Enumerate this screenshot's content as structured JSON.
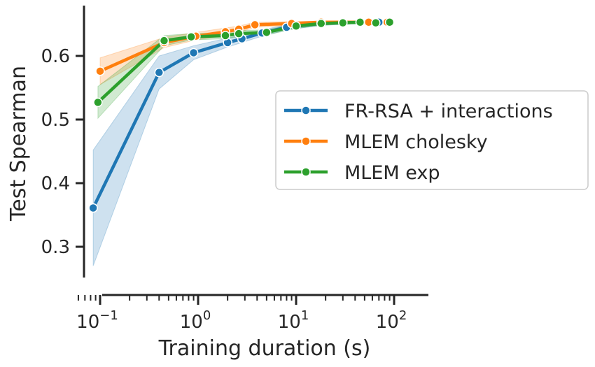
{
  "chart_data": {
    "type": "line",
    "title": "",
    "xlabel": "Training duration (s)",
    "ylabel": "Test Spearman",
    "xscale": "log",
    "xlim": [
      0.06,
      130
    ],
    "ylim": [
      0.25,
      0.68
    ],
    "grid": false,
    "legend_position": "center-right",
    "x_ticks": [
      {
        "value": 0.1,
        "base": "10",
        "exp": "−1"
      },
      {
        "value": 1,
        "base": "10",
        "exp": "0"
      },
      {
        "value": 10,
        "base": "10",
        "exp": "1"
      },
      {
        "value": 100,
        "base": "10",
        "exp": "2"
      }
    ],
    "y_ticks": [
      {
        "value": 0.3,
        "label": "0.3"
      },
      {
        "value": 0.4,
        "label": "0.4"
      },
      {
        "value": 0.5,
        "label": "0.5"
      },
      {
        "value": 0.6,
        "label": "0.6"
      }
    ],
    "series": [
      {
        "name": "FR-RSA + interactions",
        "color": "#1f77b4",
        "x": [
          0.085,
          0.4,
          0.9,
          2.0,
          2.8,
          4.5,
          8.0,
          18,
          45,
          70
        ],
        "y": [
          0.361,
          0.574,
          0.605,
          0.621,
          0.627,
          0.636,
          0.645,
          0.651,
          0.653,
          0.653
        ],
        "lower": [
          0.27,
          0.548,
          0.594,
          0.614,
          0.621,
          0.631,
          0.641,
          0.648,
          0.651,
          0.651
        ],
        "upper": [
          0.452,
          0.6,
          0.616,
          0.628,
          0.633,
          0.641,
          0.649,
          0.654,
          0.655,
          0.655
        ]
      },
      {
        "name": "MLEM cholesky",
        "color": "#ff7f0e",
        "x": [
          0.1,
          0.45,
          0.95,
          1.9,
          2.6,
          3.8,
          9.0,
          18,
          30,
          55,
          85
        ],
        "y": [
          0.576,
          0.621,
          0.631,
          0.638,
          0.642,
          0.649,
          0.651,
          0.653,
          0.653,
          0.653,
          0.653
        ],
        "lower": [
          0.555,
          0.613,
          0.625,
          0.632,
          0.637,
          0.645,
          0.648,
          0.651,
          0.651,
          0.651,
          0.651
        ],
        "upper": [
          0.597,
          0.629,
          0.637,
          0.644,
          0.647,
          0.653,
          0.654,
          0.655,
          0.655,
          0.655,
          0.655
        ]
      },
      {
        "name": "MLEM exp",
        "color": "#2ca02c",
        "x": [
          0.095,
          0.45,
          0.85,
          1.9,
          2.6,
          5.0,
          10,
          18,
          30,
          45,
          65,
          90
        ],
        "y": [
          0.527,
          0.624,
          0.63,
          0.632,
          0.635,
          0.637,
          0.647,
          0.651,
          0.652,
          0.653,
          0.652,
          0.653
        ],
        "lower": [
          0.502,
          0.616,
          0.625,
          0.627,
          0.63,
          0.633,
          0.643,
          0.648,
          0.65,
          0.651,
          0.65,
          0.651
        ],
        "upper": [
          0.552,
          0.632,
          0.635,
          0.637,
          0.64,
          0.641,
          0.651,
          0.654,
          0.654,
          0.655,
          0.654,
          0.655
        ]
      }
    ]
  }
}
